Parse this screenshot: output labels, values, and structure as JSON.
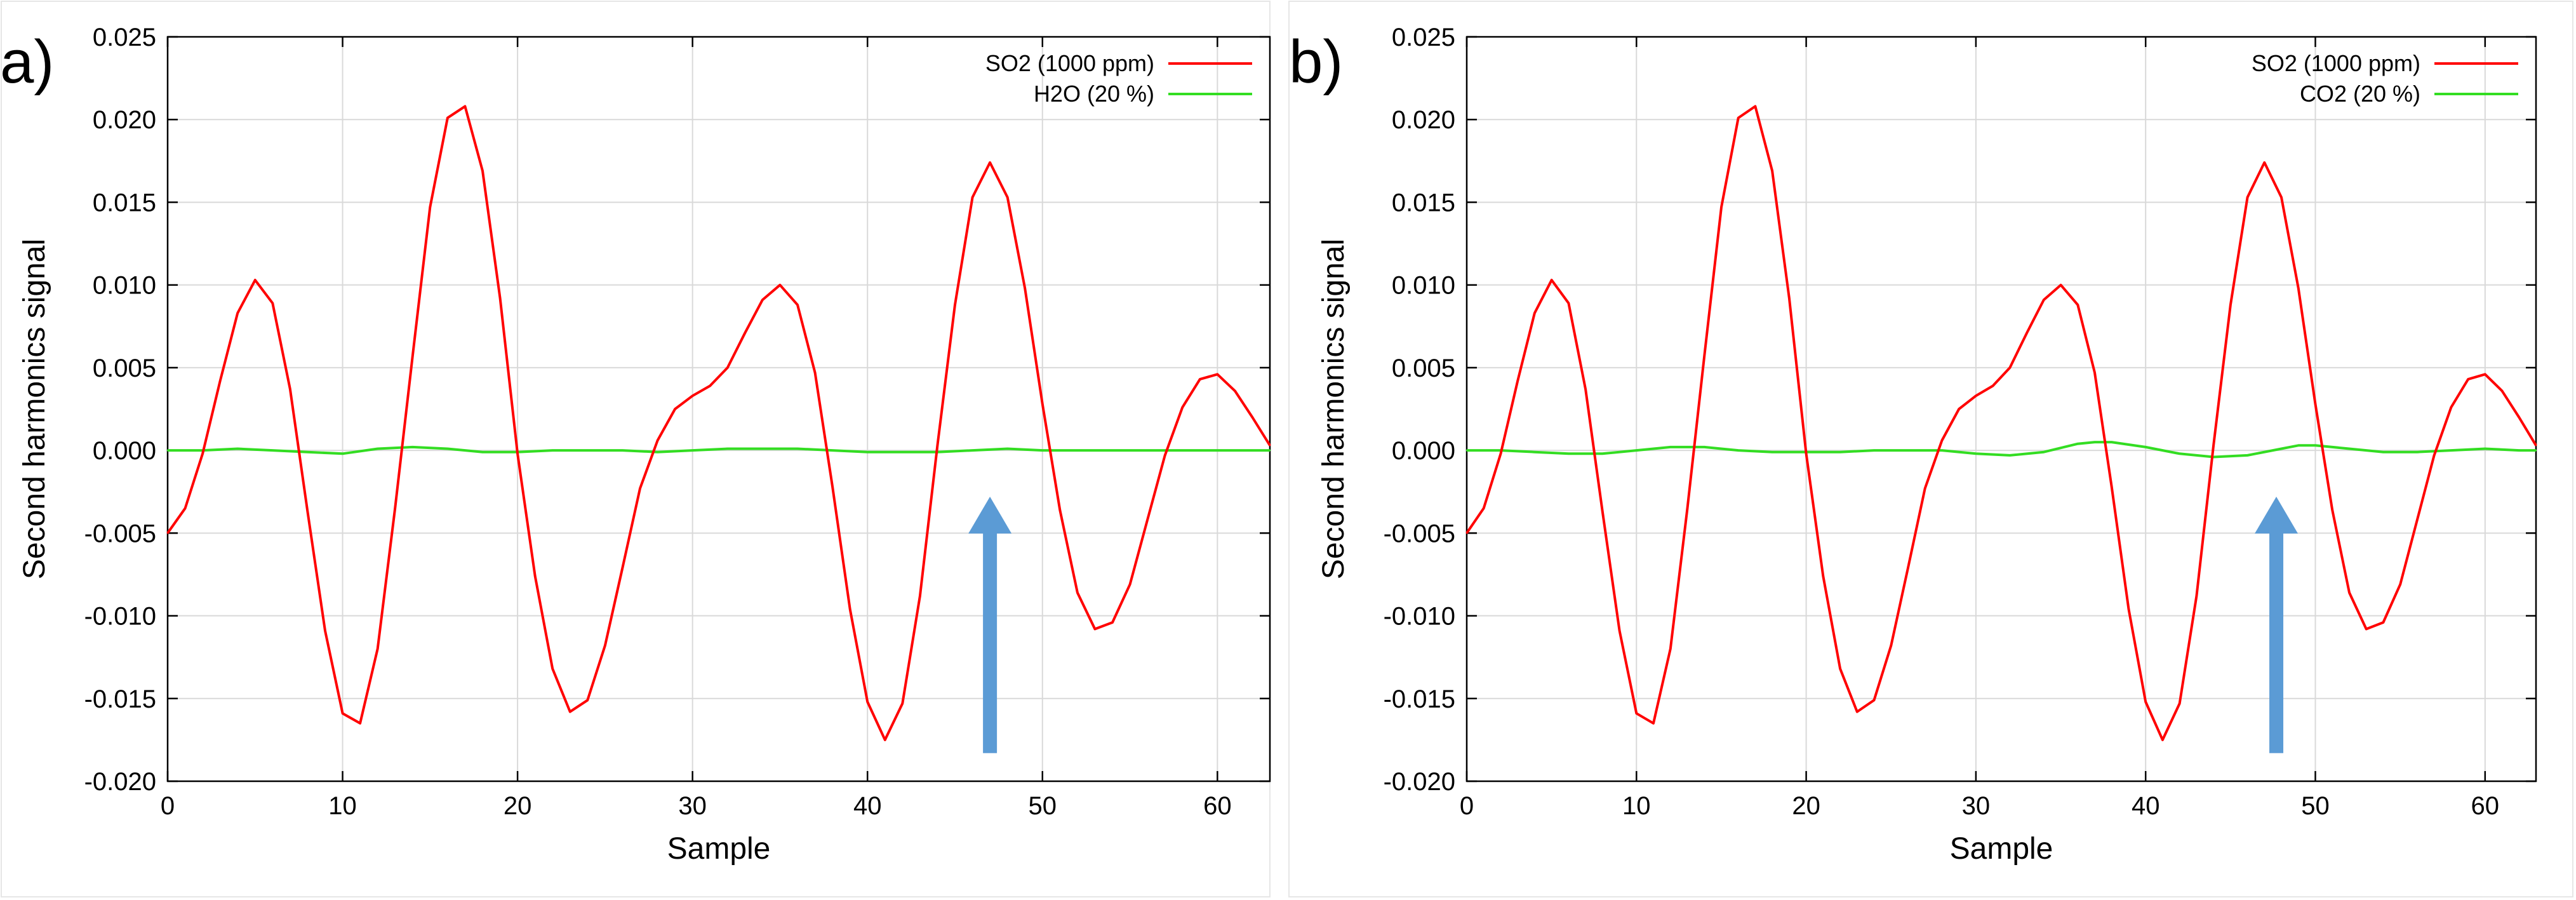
{
  "chart_data": [
    {
      "type": "line",
      "panel_label": "a)",
      "xlabel": "Sample",
      "ylabel": "Second harmonics signal",
      "xlim": [
        0,
        63
      ],
      "ylim": [
        -0.02,
        0.025
      ],
      "x_ticks": [
        "0",
        "10",
        "20",
        "30",
        "40",
        "50",
        "60"
      ],
      "y_ticks": [
        "-0.020",
        "-0.015",
        "-0.010",
        "-0.005",
        "0.000",
        "0.005",
        "0.010",
        "0.015",
        "0.020",
        "0.025"
      ],
      "grid": true,
      "legend_position": "top-right",
      "series": [
        {
          "name": "SO2 (1000 ppm)",
          "color": "#ff0000",
          "x": [
            0,
            1,
            2,
            3,
            4,
            5,
            6,
            7,
            8,
            9,
            10,
            11,
            12,
            13,
            14,
            15,
            16,
            17,
            18,
            19,
            20,
            21,
            22,
            23,
            24,
            25,
            26,
            27,
            28,
            29,
            30,
            31,
            32,
            33,
            34,
            35,
            36,
            37,
            38,
            39,
            40,
            41,
            42,
            43,
            44,
            45,
            46,
            47,
            48,
            49,
            50,
            51,
            52,
            53,
            54,
            55,
            56,
            57,
            58,
            59,
            60,
            61,
            62,
            63
          ],
          "values": [
            -0.005,
            -0.0035,
            -0.0002,
            0.0042,
            0.0083,
            0.0103,
            0.0089,
            0.0037,
            -0.0037,
            -0.0109,
            -0.0159,
            -0.0165,
            -0.012,
            -0.0035,
            0.0057,
            0.0147,
            0.0201,
            0.0208,
            0.0169,
            0.0092,
            -0.0002,
            -0.0076,
            -0.0132,
            -0.0158,
            -0.0151,
            -0.0118,
            -0.0071,
            -0.0023,
            0.0006,
            0.0025,
            0.0033,
            0.0039,
            0.005,
            0.0071,
            0.0091,
            0.01,
            0.0088,
            0.0047,
            -0.0022,
            -0.0096,
            -0.0152,
            -0.0175,
            -0.0153,
            -0.0088,
            0.0003,
            0.0088,
            0.0153,
            0.0174,
            0.0153,
            0.0098,
            0.0028,
            -0.0036,
            -0.0086,
            -0.0108,
            -0.0104,
            -0.0081,
            -0.0042,
            -0.0003,
            0.0026,
            0.0043,
            0.0046,
            0.0036,
            0.002,
            0.0003
          ]
        },
        {
          "name": "H2O (20 %)",
          "color": "#33dd22",
          "x": [
            0,
            2,
            4,
            6,
            8,
            10,
            12,
            14,
            16,
            18,
            20,
            22,
            24,
            26,
            28,
            30,
            32,
            34,
            36,
            38,
            40,
            42,
            44,
            46,
            48,
            50,
            52,
            54,
            56,
            58,
            60,
            62,
            63
          ],
          "values": [
            0,
            0,
            0.0001,
            0,
            -0.0001,
            -0.0002,
            0.0001,
            0.0002,
            0.0001,
            -0.0001,
            -0.0001,
            0,
            0,
            0,
            -0.0001,
            0,
            0.0001,
            0.0001,
            0.0001,
            0,
            -0.0001,
            -0.0001,
            -0.0001,
            0,
            0.0001,
            0,
            0,
            0,
            0,
            0,
            0,
            0,
            0
          ]
        }
      ],
      "annotations": [
        {
          "type": "arrow",
          "direction": "up",
          "color": "#5b9bd5",
          "x": 47,
          "y_from": -0.0183,
          "y_to": -0.0028
        }
      ]
    },
    {
      "type": "line",
      "panel_label": "b)",
      "xlabel": "Sample",
      "ylabel": "Second harmonics signal",
      "xlim": [
        0,
        63
      ],
      "ylim": [
        -0.02,
        0.025
      ],
      "x_ticks": [
        "0",
        "10",
        "20",
        "30",
        "40",
        "50",
        "60"
      ],
      "y_ticks": [
        "-0.020",
        "-0.015",
        "-0.010",
        "-0.005",
        "0.000",
        "0.005",
        "0.010",
        "0.015",
        "0.020",
        "0.025"
      ],
      "grid": true,
      "legend_position": "top-right",
      "series": [
        {
          "name": "SO2 (1000 ppm)",
          "color": "#ff0000",
          "x": [
            0,
            1,
            2,
            3,
            4,
            5,
            6,
            7,
            8,
            9,
            10,
            11,
            12,
            13,
            14,
            15,
            16,
            17,
            18,
            19,
            20,
            21,
            22,
            23,
            24,
            25,
            26,
            27,
            28,
            29,
            30,
            31,
            32,
            33,
            34,
            35,
            36,
            37,
            38,
            39,
            40,
            41,
            42,
            43,
            44,
            45,
            46,
            47,
            48,
            49,
            50,
            51,
            52,
            53,
            54,
            55,
            56,
            57,
            58,
            59,
            60,
            61,
            62,
            63
          ],
          "values": [
            -0.005,
            -0.0035,
            -0.0002,
            0.0042,
            0.0083,
            0.0103,
            0.0089,
            0.0037,
            -0.0037,
            -0.0109,
            -0.0159,
            -0.0165,
            -0.012,
            -0.0035,
            0.0057,
            0.0147,
            0.0201,
            0.0208,
            0.0169,
            0.0092,
            -0.0002,
            -0.0076,
            -0.0132,
            -0.0158,
            -0.0151,
            -0.0118,
            -0.0071,
            -0.0023,
            0.0006,
            0.0025,
            0.0033,
            0.0039,
            0.005,
            0.0071,
            0.0091,
            0.01,
            0.0088,
            0.0047,
            -0.0022,
            -0.0096,
            -0.0152,
            -0.0175,
            -0.0153,
            -0.0088,
            0.0003,
            0.0088,
            0.0153,
            0.0174,
            0.0153,
            0.0098,
            0.0028,
            -0.0036,
            -0.0086,
            -0.0108,
            -0.0104,
            -0.0081,
            -0.0042,
            -0.0003,
            0.0026,
            0.0043,
            0.0046,
            0.0036,
            0.002,
            0.0003
          ]
        },
        {
          "name": "CO2 (20 %)",
          "color": "#33dd22",
          "x": [
            0,
            2,
            4,
            6,
            8,
            10,
            12,
            13,
            14,
            16,
            18,
            20,
            22,
            24,
            26,
            28,
            30,
            32,
            34,
            36,
            37,
            38,
            40,
            42,
            44,
            46,
            48,
            49,
            50,
            52,
            54,
            56,
            58,
            60,
            62,
            63
          ],
          "values": [
            0,
            0,
            -0.0001,
            -0.0002,
            -0.0002,
            0,
            0.0002,
            0.0002,
            0.0002,
            0,
            -0.0001,
            -0.0001,
            -0.0001,
            0,
            0,
            0,
            -0.0002,
            -0.0003,
            -0.0001,
            0.0004,
            0.0005,
            0.0005,
            0.0002,
            -0.0002,
            -0.0004,
            -0.0003,
            0.0001,
            0.0003,
            0.0003,
            0.0001,
            -0.0001,
            -0.0001,
            0,
            0.0001,
            0,
            0
          ]
        }
      ],
      "annotations": [
        {
          "type": "arrow",
          "direction": "up",
          "color": "#5b9bd5",
          "x": 47.7,
          "y_from": -0.0183,
          "y_to": -0.0028
        }
      ]
    }
  ]
}
